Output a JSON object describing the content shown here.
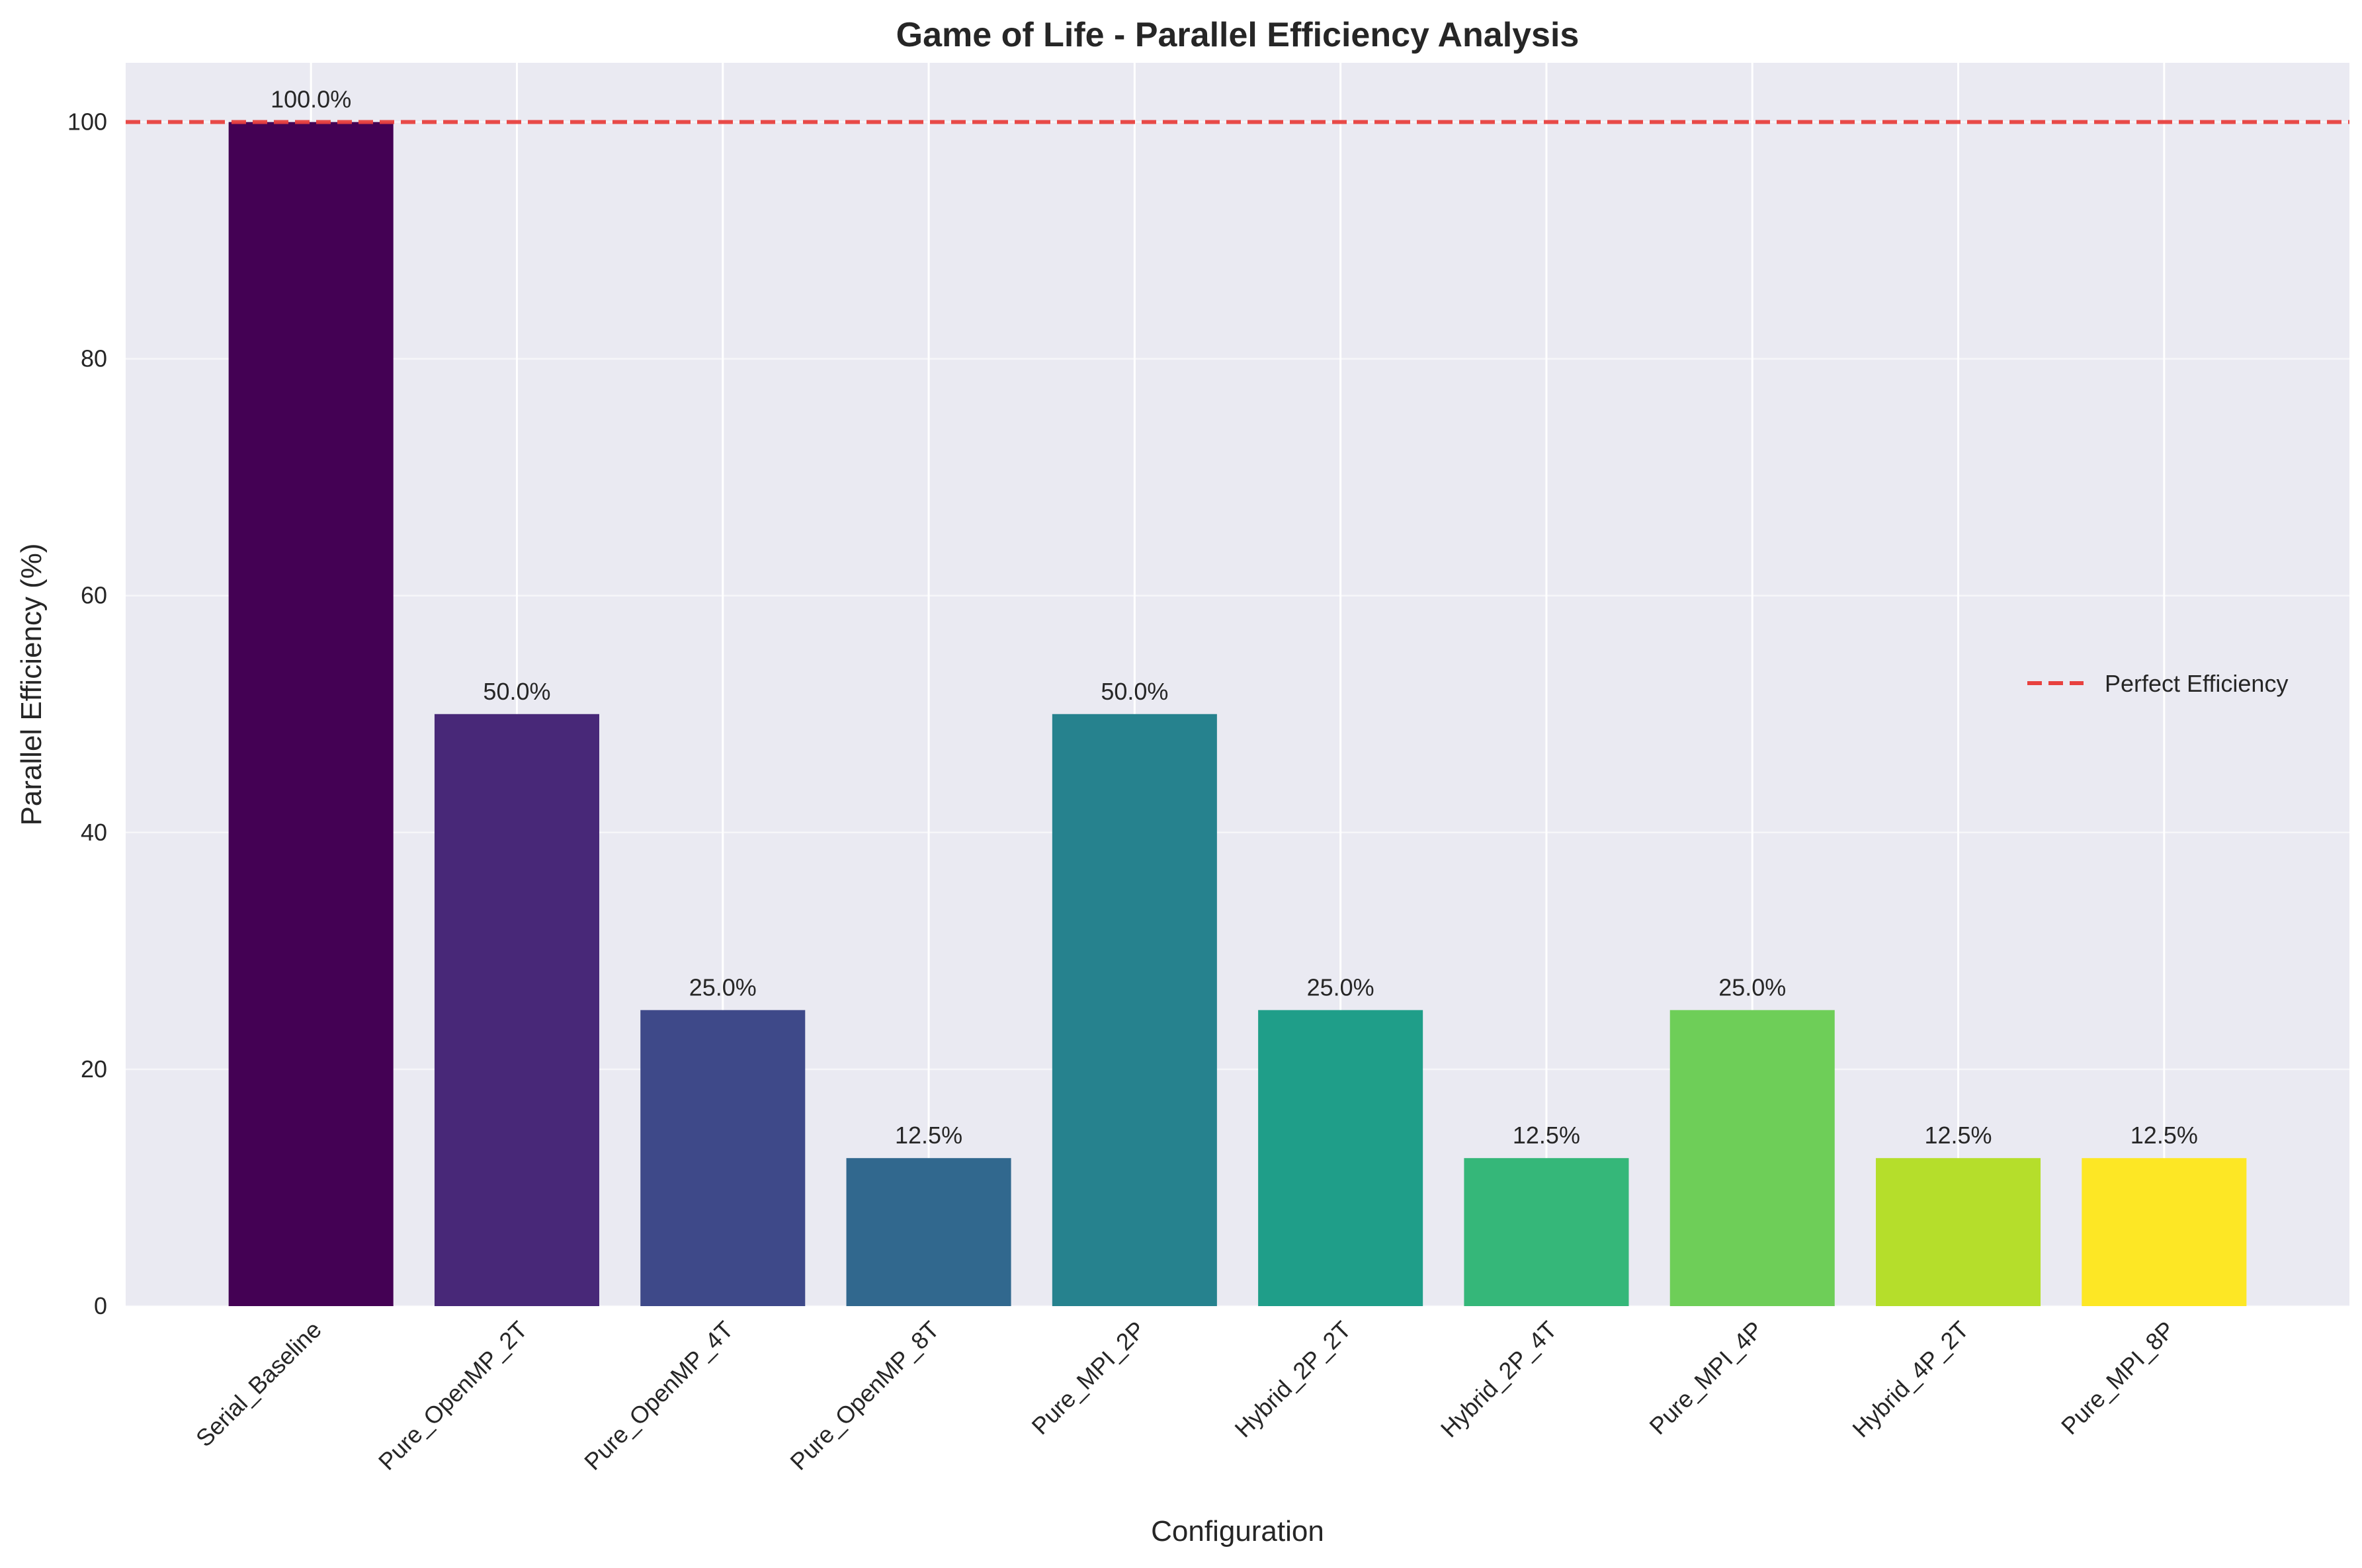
{
  "chart_data": {
    "type": "bar",
    "title": "Game of Life - Parallel Efficiency Analysis",
    "xlabel": "Configuration",
    "ylabel": "Parallel Efficiency (%)",
    "ylim": [
      0,
      105
    ],
    "yticks": [
      0,
      20,
      40,
      60,
      80,
      100
    ],
    "grid": true,
    "categories": [
      "Serial_Baseline",
      "Pure_OpenMP_2T",
      "Pure_OpenMP_4T",
      "Pure_OpenMP_8T",
      "Pure_MPI_2P",
      "Hybrid_2P_2T",
      "Hybrid_2P_4T",
      "Pure_MPI_4P",
      "Hybrid_4P_2T",
      "Pure_MPI_8P"
    ],
    "values": [
      100.0,
      50.0,
      25.0,
      12.5,
      50.0,
      25.0,
      12.5,
      25.0,
      12.5,
      12.5
    ],
    "data_labels": [
      "100.0%",
      "50.0%",
      "25.0%",
      "12.5%",
      "50.0%",
      "25.0%",
      "12.5%",
      "25.0%",
      "12.5%",
      "12.5%"
    ],
    "bar_colors": [
      "#440154",
      "#482878",
      "#3e4989",
      "#31688e",
      "#26828e",
      "#1f9e89",
      "#35b779",
      "#6ece58",
      "#b5de2b",
      "#fde725"
    ],
    "reference_line": {
      "value": 100,
      "label": "Perfect Efficiency",
      "color": "#e8413f",
      "style": "dashed"
    },
    "legend": {
      "placement": "center-right",
      "entries": [
        "Perfect Efficiency"
      ]
    },
    "background_color": "#eaeaf2",
    "grid_color": "#ffffff"
  }
}
